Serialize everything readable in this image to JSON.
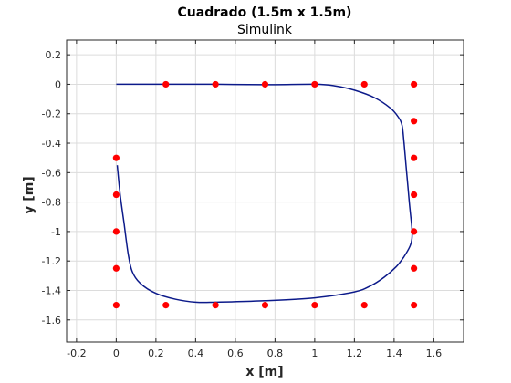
{
  "chart_data": {
    "type": "line",
    "title": "Cuadrado (1.5m x 1.5m)",
    "subtitle": "Simulink",
    "xlabel": "x [m]",
    "ylabel": "y [m]",
    "xlim": [
      -0.25,
      1.75
    ],
    "ylim": [
      -1.75,
      0.3
    ],
    "xticks": [
      -0.2,
      0,
      0.2,
      0.4,
      0.6,
      0.8,
      1,
      1.2,
      1.4,
      1.6
    ],
    "xtick_labels": [
      "-0.2",
      "0",
      "0.2",
      "0.4",
      "0.6",
      "0.8",
      "1",
      "1.2",
      "1.4",
      "1.6"
    ],
    "yticks": [
      0.2,
      0,
      -0.2,
      -0.4,
      -0.6,
      -0.8,
      -1,
      -1.2,
      -1.4,
      -1.6
    ],
    "ytick_labels": [
      "0.2",
      "0",
      "-0.2",
      "-0.4",
      "-0.6",
      "-0.8",
      "-1",
      "-1.2",
      "-1.4",
      "-1.6"
    ],
    "grid": true,
    "colors": {
      "trajectory": "#0c1a8a",
      "waypoints": "#ff0000",
      "grid": "#dcdcdc",
      "axes": "#262626"
    },
    "series": [
      {
        "kind": "line",
        "x": [
          0,
          0.25,
          0.5,
          0.75,
          1.0,
          1.1,
          1.2,
          1.3,
          1.38,
          1.42,
          1.44,
          1.45,
          1.46,
          1.47,
          1.48,
          1.49,
          1.49,
          1.48,
          1.45,
          1.41,
          1.35,
          1.28,
          1.2,
          1.0,
          0.75,
          0.5,
          0.4,
          0.3,
          0.2,
          0.12,
          0.08,
          0.06,
          0.04,
          0.02,
          0.005
        ],
        "y": [
          0,
          0,
          0,
          -0.003,
          0,
          -0.01,
          -0.04,
          -0.09,
          -0.16,
          -0.22,
          -0.28,
          -0.4,
          -0.55,
          -0.7,
          -0.85,
          -0.98,
          -1.05,
          -1.1,
          -1.17,
          -1.24,
          -1.31,
          -1.37,
          -1.41,
          -1.45,
          -1.47,
          -1.48,
          -1.48,
          -1.46,
          -1.42,
          -1.35,
          -1.27,
          -1.15,
          -0.95,
          -0.75,
          -0.55
        ]
      },
      {
        "kind": "scatter",
        "x": [
          0.25,
          0.5,
          0.75,
          1.0,
          1.25,
          1.5,
          1.5,
          1.5,
          1.5,
          1.5,
          1.5,
          1.5,
          1.25,
          1.0,
          0.75,
          0.5,
          0.25,
          0,
          0,
          0,
          0,
          0
        ],
        "y": [
          0,
          0,
          0,
          0,
          0,
          0,
          -0.25,
          -0.5,
          -0.75,
          -1.0,
          -1.25,
          -1.5,
          -1.5,
          -1.5,
          -1.5,
          -1.5,
          -1.5,
          -1.5,
          -1.25,
          -1.0,
          -0.75,
          -0.5
        ]
      }
    ]
  }
}
